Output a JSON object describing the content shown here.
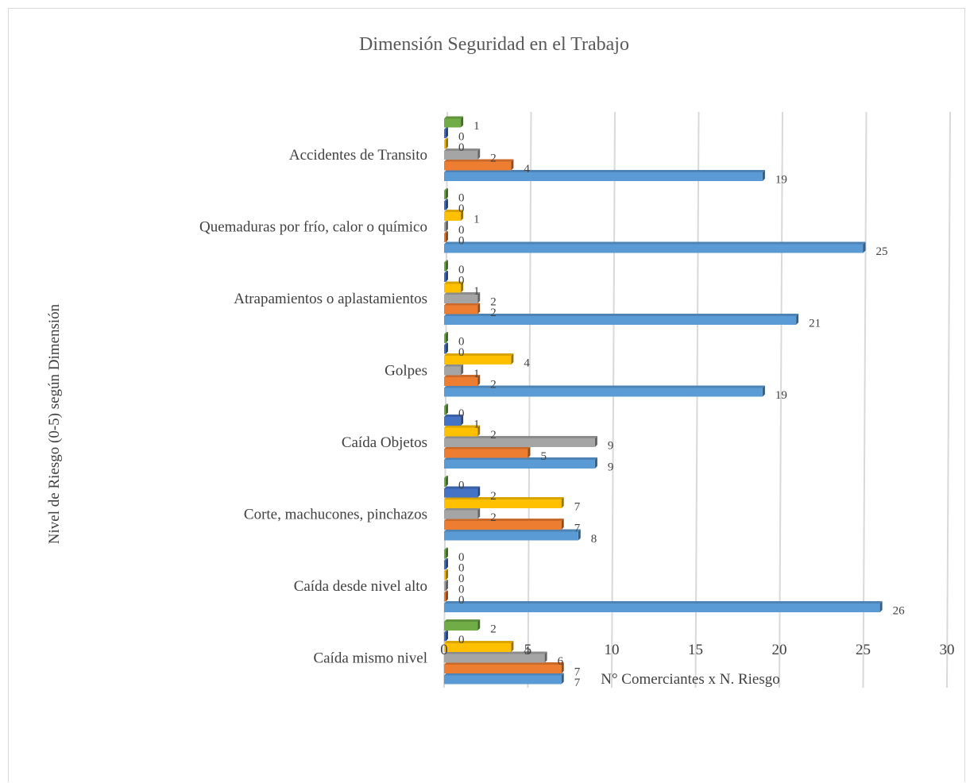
{
  "chart_data": {
    "type": "bar",
    "orientation": "horizontal",
    "title": "Dimensión Seguridad en el Trabajo",
    "xlabel": "N° Comerciantes x N. Riesgo",
    "ylabel": "Nivel de Riesgo (0-5) según Dimensión",
    "xlim": [
      0,
      30
    ],
    "xticks": [
      "0",
      "5",
      "10",
      "15",
      "20",
      "25",
      "30"
    ],
    "grid": true,
    "legend": "none",
    "categories": [
      "Caída mismo nivel",
      "Caída desde nivel alto",
      "Corte, machucones, pinchazos",
      "Caída Objetos",
      "Golpes",
      "Atrapamientos o aplastamientos",
      "Quemaduras por frío, calor o químico",
      "Accidentes de Transito"
    ],
    "series": [
      {
        "color": "#5b9bd5",
        "values": [
          7,
          26,
          8,
          9,
          19,
          21,
          25,
          19
        ]
      },
      {
        "color": "#ed7d31",
        "values": [
          7,
          0,
          7,
          5,
          2,
          2,
          0,
          4
        ]
      },
      {
        "color": "#a5a5a5",
        "values": [
          6,
          0,
          2,
          9,
          1,
          2,
          0,
          2
        ]
      },
      {
        "color": "#ffc000",
        "values": [
          4,
          0,
          7,
          2,
          4,
          1,
          1,
          0
        ]
      },
      {
        "color": "#4472c4",
        "values": [
          0,
          0,
          2,
          1,
          0,
          0,
          0,
          0
        ]
      },
      {
        "color": "#70ad47",
        "values": [
          2,
          0,
          0,
          0,
          0,
          0,
          0,
          1
        ]
      }
    ]
  }
}
